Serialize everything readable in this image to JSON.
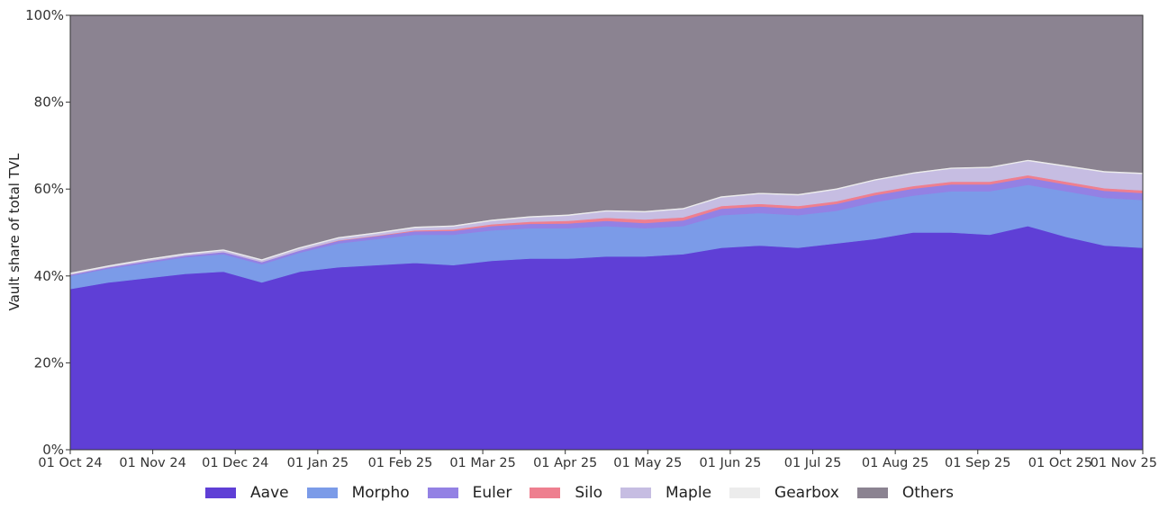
{
  "chart_data": {
    "type": "area",
    "stacked": true,
    "title": "",
    "xlabel": "",
    "ylabel": "Vault share of total TVL",
    "ylim": [
      0,
      100
    ],
    "yticks": [
      "0%",
      "20%",
      "40%",
      "60%",
      "80%",
      "100%"
    ],
    "ytick_values": [
      0,
      20,
      40,
      60,
      80,
      100
    ],
    "xticks": [
      "01 Oct 24",
      "01 Nov 24",
      "01 Dec 24",
      "01 Jan 25",
      "01 Feb 25",
      "01 Mar 25",
      "01 Apr 25",
      "01 May 25",
      "01 Jun 25",
      "01 Jul 25",
      "01 Aug 25",
      "01 Sep 25",
      "01 Oct 25",
      "01 Nov 25"
    ],
    "x": [
      "01 Oct 24",
      "15 Oct 24",
      "01 Nov 24",
      "15 Nov 24",
      "01 Dec 24",
      "04 Dec 24",
      "15 Dec 24",
      "01 Jan 25",
      "15 Jan 25",
      "01 Feb 25",
      "15 Feb 25",
      "01 Mar 25",
      "15 Mar 25",
      "01 Apr 25",
      "15 Apr 25",
      "01 May 25",
      "15 May 25",
      "01 Jun 25",
      "15 Jun 25",
      "01 Jul 25",
      "15 Jul 25",
      "01 Aug 25",
      "15 Aug 25",
      "01 Sep 25",
      "15 Sep 25",
      "01 Oct 25",
      "15 Oct 25",
      "01 Nov 25",
      "07 Nov 25"
    ],
    "series": [
      {
        "name": "Aave",
        "color": "#5f3fd6",
        "values": [
          37.0,
          38.5,
          39.5,
          40.5,
          41.0,
          38.5,
          41.0,
          42.0,
          42.5,
          43.0,
          42.5,
          43.5,
          44.0,
          44.0,
          44.5,
          44.5,
          45.0,
          46.5,
          47.0,
          46.5,
          47.5,
          48.5,
          50.0,
          50.0,
          49.5,
          51.5,
          49.0,
          47.0,
          46.5
        ]
      },
      {
        "name": "Morpho",
        "color": "#7b9be8",
        "values": [
          3.0,
          3.2,
          3.5,
          3.8,
          4.0,
          4.2,
          4.4,
          5.5,
          6.0,
          6.5,
          7.0,
          7.0,
          7.0,
          7.0,
          7.0,
          6.5,
          6.5,
          7.5,
          7.5,
          7.5,
          7.5,
          8.5,
          8.5,
          9.5,
          10.0,
          9.5,
          10.5,
          11.0,
          11.0
        ]
      },
      {
        "name": "Euler",
        "color": "#9381e4",
        "values": [
          0.3,
          0.3,
          0.4,
          0.4,
          0.5,
          0.5,
          0.5,
          0.6,
          0.7,
          0.8,
          0.9,
          1.0,
          1.0,
          1.1,
          1.2,
          1.2,
          1.3,
          1.5,
          1.5,
          1.5,
          1.6,
          1.6,
          1.6,
          1.6,
          1.6,
          1.6,
          1.6,
          1.6,
          1.6
        ]
      },
      {
        "name": "Silo",
        "color": "#ee7f8f",
        "values": [
          0.0,
          0.0,
          0.0,
          0.0,
          0.0,
          0.0,
          0.0,
          0.1,
          0.1,
          0.2,
          0.3,
          0.4,
          0.5,
          0.6,
          0.7,
          0.8,
          0.7,
          0.6,
          0.6,
          0.6,
          0.6,
          0.6,
          0.6,
          0.6,
          0.6,
          0.6,
          0.6,
          0.6,
          0.6
        ]
      },
      {
        "name": "Maple",
        "color": "#c6bde2",
        "values": [
          0.2,
          0.2,
          0.3,
          0.3,
          0.4,
          0.4,
          0.5,
          0.5,
          0.5,
          0.6,
          0.7,
          0.8,
          1.0,
          1.2,
          1.5,
          1.7,
          1.9,
          2.0,
          2.3,
          2.5,
          2.7,
          2.8,
          2.9,
          3.0,
          3.2,
          3.3,
          3.5,
          3.7,
          3.8
        ]
      },
      {
        "name": "Gearbox",
        "color": "#ececec",
        "values": [
          0.3,
          0.3,
          0.3,
          0.3,
          0.3,
          0.3,
          0.3,
          0.3,
          0.3,
          0.3,
          0.3,
          0.3,
          0.3,
          0.3,
          0.3,
          0.3,
          0.3,
          0.3,
          0.3,
          0.3,
          0.3,
          0.3,
          0.3,
          0.3,
          0.3,
          0.3,
          0.3,
          0.3,
          0.3
        ]
      },
      {
        "name": "Others",
        "color": "#8b8391",
        "values": [
          59.2,
          57.5,
          56.0,
          54.7,
          53.8,
          56.1,
          53.3,
          51.0,
          49.9,
          48.6,
          48.3,
          47.0,
          46.2,
          45.8,
          44.8,
          45.0,
          44.3,
          41.6,
          40.8,
          41.1,
          39.8,
          37.7,
          36.1,
          35.0,
          34.8,
          33.2,
          34.5,
          35.8,
          36.2
        ]
      }
    ],
    "legend_position": "bottom-center",
    "grid": false
  }
}
